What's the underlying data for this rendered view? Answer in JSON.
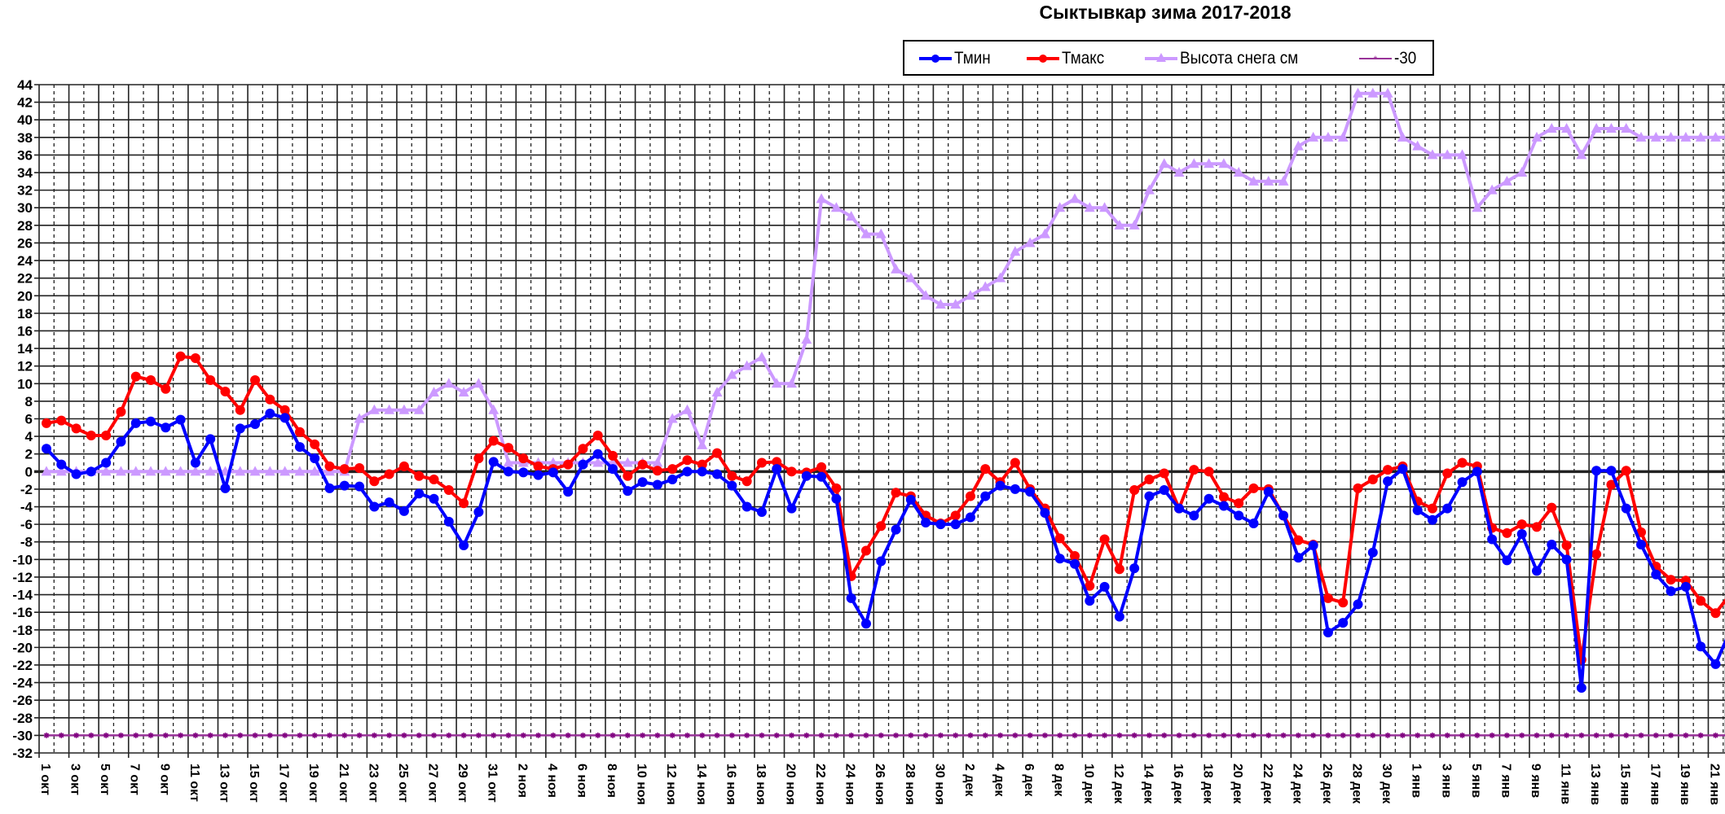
{
  "chart_data": {
    "type": "line",
    "title": "Сыктывкар зима 2017-2018",
    "xlabel": "",
    "ylabel": "",
    "ylim": [
      -32,
      44
    ],
    "ytick_step": 2,
    "grid": true,
    "legend_placement": "top-center",
    "start_date_label": "1 окт",
    "x_tick_labels": [
      "1 окт",
      "3 окт",
      "5 окт",
      "7 окт",
      "9 окт",
      "11 окт",
      "13 окт",
      "15 окт",
      "17 окт",
      "19 окт",
      "21 окт",
      "23 окт",
      "25 окт",
      "27 окт",
      "29 окт",
      "31 окт",
      "2 ноя",
      "4 ноя",
      "6 ноя",
      "8 ноя",
      "10 ноя",
      "12 ноя",
      "14 ноя",
      "16 ноя",
      "18 ноя",
      "20 ноя",
      "22 ноя",
      "24 ноя",
      "26 ноя",
      "28 ноя",
      "30 ноя",
      "2 дек",
      "4 дек",
      "6 дек",
      "8 дек",
      "10 дек",
      "12 дек",
      "14 дек",
      "16 дек",
      "18 дек",
      "20 дек",
      "22 дек",
      "24 дек",
      "26 дек",
      "28 дек",
      "30 дек",
      "1 янв",
      "3 янв",
      "5 янв",
      "7 янв",
      "9 янв",
      "11 янв",
      "13 янв",
      "15 янв",
      "17 янв",
      "19 янв",
      "21 янв"
    ],
    "y_tick_labels": [
      "44",
      "42",
      "40",
      "38",
      "36",
      "34",
      "32",
      "30",
      "28",
      "26",
      "24",
      "22",
      "20",
      "18",
      "16",
      "14",
      "12",
      "10",
      "8",
      "6",
      "4",
      "2",
      "0",
      "-2",
      "-4",
      "-6",
      "-8",
      "-10",
      "-12",
      "-14",
      "-16",
      "-18",
      "-20",
      "-22",
      "-24",
      "-26",
      "-28",
      "-30",
      "-32"
    ],
    "series": [
      {
        "name": "Тмин",
        "color": "#0000FF",
        "marker": "circle",
        "values": [
          2.6,
          0.8,
          -0.3,
          0.0,
          1.0,
          3.4,
          5.5,
          5.7,
          5.0,
          5.9,
          1.0,
          3.7,
          -1.9,
          4.9,
          5.4,
          6.6,
          6.1,
          2.8,
          1.5,
          -1.9,
          -1.6,
          -1.7,
          -4.0,
          -3.5,
          -4.5,
          -2.5,
          -3.1,
          -5.7,
          -8.4,
          -4.6,
          1.1,
          0.0,
          -0.1,
          -0.4,
          -0.1,
          -2.3,
          0.8,
          2.0,
          0.3,
          -2.2,
          -1.2,
          -1.5,
          -0.9,
          0.0,
          0.0,
          -0.3,
          -1.6,
          -4.0,
          -4.6,
          0.3,
          -4.2,
          -0.5,
          -0.6,
          -3.1,
          -14.4,
          -17.3,
          -10.2,
          -6.6,
          -3.2,
          -5.8,
          -6.0,
          -6.0,
          -5.2,
          -2.8,
          -1.6,
          -2.0,
          -2.3,
          -4.7,
          -9.9,
          -10.5,
          -14.7,
          -13.1,
          -16.5,
          -11.0,
          -2.8,
          -2.1,
          -4.2,
          -5.0,
          -3.1,
          -3.9,
          -5.0,
          -5.9,
          -2.3,
          -5.0,
          -9.8,
          -8.4,
          -18.3,
          -17.2,
          -15.1,
          -9.2,
          -1.1,
          0.3,
          -4.4,
          -5.5,
          -4.2,
          -1.2,
          0.0,
          -7.7,
          -10.1,
          -7.1,
          -11.3,
          -8.3,
          -10.0,
          -24.6,
          0.1,
          0.1,
          -4.2,
          -8.3,
          -11.7,
          -13.6,
          -13.1,
          -19.9,
          -21.9,
          -18.0
        ]
      },
      {
        "name": "Тмакс",
        "color": "#FF0000",
        "marker": "circle",
        "values": [
          5.5,
          5.8,
          4.9,
          4.1,
          4.1,
          6.8,
          10.8,
          10.4,
          9.4,
          13.1,
          12.9,
          10.4,
          9.1,
          7.0,
          10.4,
          8.2,
          7.0,
          4.5,
          3.1,
          0.6,
          0.3,
          0.4,
          -1.1,
          -0.3,
          0.6,
          -0.5,
          -0.9,
          -2.1,
          -3.6,
          1.5,
          3.5,
          2.7,
          1.5,
          0.6,
          0.3,
          0.8,
          2.6,
          4.1,
          1.8,
          -0.5,
          0.8,
          0.1,
          0.3,
          1.3,
          0.8,
          2.1,
          -0.5,
          -1.1,
          1.0,
          1.1,
          0.0,
          -0.1,
          0.5,
          -1.9,
          -11.9,
          -9.0,
          -6.2,
          -2.4,
          -2.8,
          -5.0,
          -5.9,
          -5.0,
          -2.8,
          0.3,
          -1.2,
          1.0,
          -2.0,
          -4.2,
          -7.6,
          -9.6,
          -13.0,
          -7.7,
          -11.1,
          -2.1,
          -0.9,
          -0.2,
          -4.2,
          0.2,
          0.0,
          -2.9,
          -3.6,
          -1.9,
          -2.0,
          -5.0,
          -7.8,
          -8.3,
          -14.4,
          -14.9,
          -1.9,
          -0.9,
          0.2,
          0.6,
          -3.4,
          -4.2,
          -0.2,
          1.0,
          0.6,
          -6.4,
          -7.0,
          -6.0,
          -6.3,
          -4.1,
          -8.4,
          -21.4,
          -9.4,
          -1.5,
          0.1,
          -6.9,
          -10.8,
          -12.3,
          -12.4,
          -14.7,
          -16.1,
          -13.9
        ]
      },
      {
        "name": "Высота снега см",
        "color": "#CC99FF",
        "marker": "triangle",
        "values": [
          0,
          0,
          0,
          0,
          0,
          0,
          0,
          0,
          0,
          0,
          0,
          0,
          0,
          0,
          0,
          0,
          0,
          0,
          0,
          0,
          0,
          6,
          7,
          7,
          7,
          7,
          9,
          10,
          9,
          10,
          7,
          1,
          1,
          1,
          1,
          1,
          1,
          1,
          1,
          1,
          1,
          1,
          6,
          7,
          3,
          9,
          11,
          12,
          13,
          10,
          10,
          15,
          31,
          30,
          29,
          27,
          27,
          23,
          22,
          20,
          19,
          19,
          20,
          21,
          22,
          25,
          26,
          27,
          30,
          31,
          30,
          30,
          28,
          28,
          32,
          35,
          34,
          35,
          35,
          35,
          34,
          33,
          33,
          33,
          37,
          38,
          38,
          38,
          43,
          43,
          43,
          38,
          37,
          36,
          36,
          36,
          30,
          32,
          33,
          34,
          38,
          39,
          39,
          36,
          39,
          39,
          39,
          38,
          38,
          38,
          38,
          38,
          38,
          38
        ]
      },
      {
        "name": "-30",
        "color": "#993399",
        "marker": "star",
        "constant": -30
      }
    ]
  }
}
